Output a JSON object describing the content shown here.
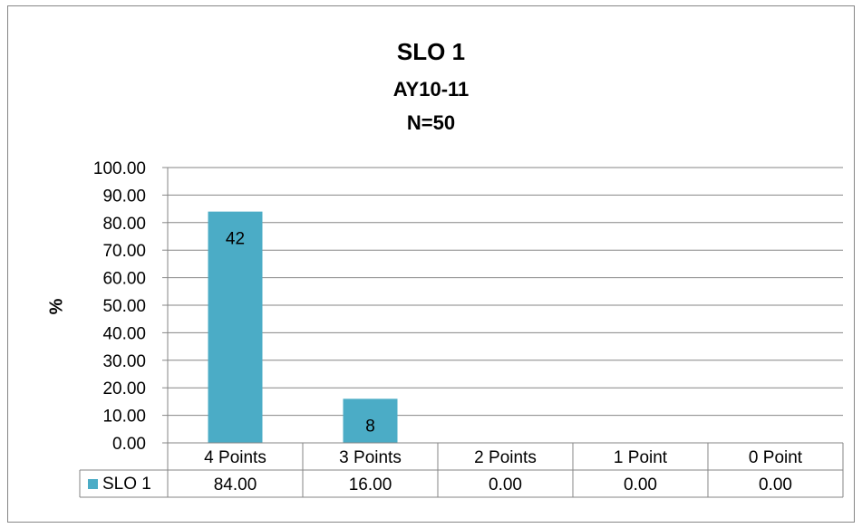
{
  "chart_data": {
    "type": "bar",
    "title": "SLO 1",
    "subtitle_lines": [
      "AY10-11",
      "N=50"
    ],
    "ylabel": "%",
    "xlabel": "",
    "ylim": [
      0,
      100
    ],
    "yticks": [
      "0.00",
      "10.00",
      "20.00",
      "30.00",
      "40.00",
      "50.00",
      "60.00",
      "70.00",
      "80.00",
      "90.00",
      "100.00"
    ],
    "grid": true,
    "categories": [
      "4 Points",
      "3 Points",
      "2 Points",
      "1 Point",
      "0 Point"
    ],
    "series": [
      {
        "name": "SLO 1",
        "color": "#4bacc6",
        "values": [
          84.0,
          16.0,
          0.0,
          0.0,
          0.0
        ],
        "table_values": [
          "84.00",
          "16.00",
          "0.00",
          "0.00",
          "0.00"
        ],
        "data_labels": [
          "42",
          "8",
          "",
          "",
          ""
        ]
      }
    ],
    "legend": "data-table"
  }
}
